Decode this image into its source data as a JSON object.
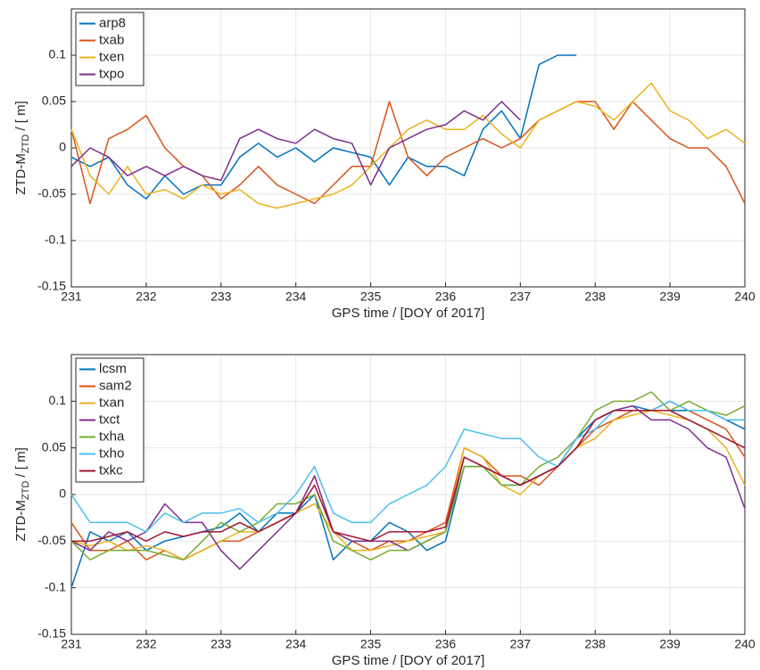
{
  "chart_data": [
    {
      "type": "line",
      "xlabel": "GPS time / [DOY of 2017]",
      "ylabel": {
        "main": "ZTD-M",
        "sub": "ZTD",
        "rest": " / [ m]"
      },
      "x": [
        231,
        231.25,
        231.5,
        231.75,
        232,
        232.25,
        232.5,
        232.75,
        233,
        233.25,
        233.5,
        233.75,
        234,
        234.25,
        234.5,
        234.75,
        235,
        235.25,
        235.5,
        235.75,
        236,
        236.25,
        236.5,
        236.75,
        237,
        237.25,
        237.5,
        237.75,
        238,
        238.25,
        238.5,
        238.75,
        239,
        239.25,
        239.5,
        239.75,
        240
      ],
      "series": [
        {
          "name": "arp8",
          "color": "#0072BD",
          "values": [
            -0.01,
            -0.02,
            -0.01,
            -0.04,
            -0.055,
            -0.03,
            -0.05,
            -0.04,
            -0.04,
            -0.01,
            0.005,
            -0.01,
            0,
            -0.015,
            0,
            -0.005,
            -0.01,
            -0.04,
            -0.01,
            -0.02,
            -0.02,
            -0.03,
            0.02,
            0.04,
            0.01,
            0.09,
            0.1,
            0.1,
            null,
            null,
            null,
            null,
            null,
            null,
            null,
            null,
            null
          ]
        },
        {
          "name": "txab",
          "color": "#D95319",
          "values": [
            0.02,
            -0.06,
            0.01,
            0.02,
            0.035,
            0,
            -0.02,
            -0.03,
            -0.055,
            -0.04,
            -0.02,
            -0.04,
            -0.05,
            -0.06,
            -0.04,
            -0.02,
            -0.02,
            0.05,
            -0.01,
            -0.03,
            -0.01,
            0,
            0.01,
            0,
            0.01,
            0.03,
            0.04,
            0.05,
            0.05,
            0.02,
            0.05,
            0.03,
            0.01,
            0,
            0,
            -0.02,
            -0.06
          ]
        },
        {
          "name": "txen",
          "color": "#EDB120",
          "values": [
            0.02,
            -0.03,
            -0.05,
            -0.02,
            -0.05,
            -0.045,
            -0.055,
            -0.04,
            -0.05,
            -0.045,
            -0.06,
            -0.065,
            -0.06,
            -0.055,
            -0.05,
            -0.04,
            -0.02,
            0,
            0.02,
            0.03,
            0.02,
            0.02,
            0.035,
            0.015,
            0,
            0.03,
            0.04,
            0.05,
            0.045,
            0.03,
            0.05,
            0.07,
            0.04,
            0.03,
            0.01,
            0.02,
            0.005
          ]
        },
        {
          "name": "txpo",
          "color": "#7E2F8E",
          "values": [
            -0.02,
            0,
            -0.01,
            -0.03,
            -0.02,
            -0.03,
            -0.02,
            -0.03,
            -0.035,
            0.01,
            0.02,
            0.01,
            0.005,
            0.02,
            0.01,
            0.005,
            -0.04,
            0,
            0.01,
            0.02,
            0.025,
            0.04,
            0.03,
            0.05,
            0.03,
            null,
            null,
            null,
            null,
            null,
            null,
            null,
            null,
            null,
            null,
            null,
            null
          ]
        }
      ],
      "xlim": [
        231,
        240
      ],
      "xticks": [
        231,
        232,
        233,
        234,
        235,
        236,
        237,
        238,
        239,
        240
      ],
      "ylim": [
        -0.15,
        0.15
      ],
      "yticks": [
        -0.15,
        -0.1,
        -0.05,
        0,
        0.05,
        0.1
      ],
      "grid": true,
      "legend": "northwest"
    },
    {
      "type": "line",
      "xlabel": "GPS time / [DOY of 2017]",
      "ylabel": {
        "main": "ZTD-M",
        "sub": "ZTD",
        "rest": " / [ m]"
      },
      "x": [
        231,
        231.25,
        231.5,
        231.75,
        232,
        232.25,
        232.5,
        232.75,
        233,
        233.25,
        233.5,
        233.75,
        234,
        234.25,
        234.5,
        234.75,
        235,
        235.25,
        235.5,
        235.75,
        236,
        236.25,
        236.5,
        236.75,
        237,
        237.25,
        237.5,
        237.75,
        238,
        238.25,
        238.5,
        238.75,
        239,
        239.25,
        239.5,
        239.75,
        240
      ],
      "series": [
        {
          "name": "lcsm",
          "color": "#0072BD",
          "values": [
            -0.1,
            -0.04,
            -0.05,
            -0.04,
            -0.06,
            -0.05,
            -0.045,
            -0.04,
            -0.035,
            -0.02,
            -0.04,
            -0.02,
            -0.02,
            0,
            -0.07,
            -0.05,
            -0.05,
            -0.03,
            -0.04,
            -0.06,
            -0.05,
            0.03,
            0.03,
            0.01,
            0.01,
            0.02,
            0.03,
            0.06,
            0.08,
            0.09,
            0.095,
            0.09,
            0.09,
            0.09,
            0.09,
            0.08,
            0.07
          ]
        },
        {
          "name": "sam2",
          "color": "#D95319",
          "values": [
            -0.03,
            -0.06,
            -0.06,
            -0.05,
            -0.07,
            -0.06,
            -0.07,
            -0.06,
            -0.05,
            -0.05,
            -0.04,
            -0.03,
            -0.02,
            0.02,
            -0.04,
            -0.05,
            -0.06,
            -0.05,
            -0.05,
            -0.04,
            -0.03,
            0.05,
            0.04,
            0.02,
            0.02,
            0.01,
            0.03,
            0.05,
            0.07,
            0.08,
            0.09,
            0.09,
            0.1,
            0.09,
            0.08,
            0.07,
            0.04
          ]
        },
        {
          "name": "txan",
          "color": "#EDB120",
          "values": [
            -0.05,
            -0.055,
            -0.05,
            -0.06,
            -0.055,
            -0.06,
            -0.07,
            -0.06,
            -0.05,
            -0.04,
            -0.04,
            -0.03,
            -0.02,
            -0.01,
            -0.04,
            -0.06,
            -0.06,
            -0.055,
            -0.05,
            -0.045,
            -0.04,
            0.05,
            0.04,
            0.01,
            0,
            0.02,
            0.03,
            0.05,
            0.06,
            0.08,
            0.085,
            0.09,
            0.085,
            0.08,
            0.07,
            0.05,
            0.01
          ]
        },
        {
          "name": "txct",
          "color": "#7E2F8E",
          "values": [
            -0.05,
            -0.06,
            -0.04,
            -0.05,
            -0.04,
            -0.01,
            -0.03,
            -0.03,
            -0.06,
            -0.08,
            -0.06,
            -0.04,
            -0.02,
            0.02,
            -0.04,
            -0.05,
            -0.05,
            -0.05,
            -0.06,
            -0.05,
            -0.04,
            0.04,
            0.03,
            0.02,
            0.01,
            0.02,
            0.03,
            0.05,
            0.08,
            0.09,
            0.095,
            0.08,
            0.08,
            0.07,
            0.05,
            0.04,
            -0.015
          ]
        },
        {
          "name": "txha",
          "color": "#77AC30",
          "values": [
            -0.05,
            -0.07,
            -0.06,
            -0.06,
            -0.06,
            -0.065,
            -0.07,
            -0.05,
            -0.03,
            -0.04,
            -0.03,
            -0.01,
            -0.01,
            0,
            -0.05,
            -0.06,
            -0.07,
            -0.06,
            -0.06,
            -0.05,
            -0.04,
            0.03,
            0.03,
            0.01,
            0.01,
            0.03,
            0.04,
            0.06,
            0.09,
            0.1,
            0.1,
            0.11,
            0.09,
            0.1,
            0.09,
            0.085,
            0.095
          ]
        },
        {
          "name": "txho",
          "color": "#4DBEEE",
          "values": [
            0,
            -0.03,
            -0.03,
            -0.03,
            -0.04,
            -0.02,
            -0.03,
            -0.02,
            -0.02,
            -0.015,
            -0.03,
            -0.02,
            0,
            0.03,
            -0.02,
            -0.03,
            -0.03,
            -0.01,
            0,
            0.01,
            0.03,
            0.07,
            0.065,
            0.06,
            0.06,
            0.04,
            0.03,
            0.06,
            0.07,
            0.09,
            0.09,
            0.09,
            0.1,
            0.09,
            0.09,
            0.08,
            0.08
          ]
        },
        {
          "name": "txkc",
          "color": "#A2142F",
          "values": [
            -0.05,
            -0.05,
            -0.045,
            -0.04,
            -0.05,
            -0.04,
            -0.045,
            -0.04,
            -0.04,
            -0.03,
            -0.04,
            -0.03,
            -0.02,
            0.01,
            -0.04,
            -0.045,
            -0.05,
            -0.04,
            -0.04,
            -0.04,
            -0.035,
            0.04,
            0.03,
            0.02,
            0.01,
            0.02,
            0.03,
            0.05,
            0.08,
            0.09,
            0.09,
            0.09,
            0.09,
            0.08,
            0.07,
            0.06,
            0.05
          ]
        }
      ],
      "xlim": [
        231,
        240
      ],
      "xticks": [
        231,
        232,
        233,
        234,
        235,
        236,
        237,
        238,
        239,
        240
      ],
      "ylim": [
        -0.15,
        0.15
      ],
      "yticks": [
        -0.15,
        -0.1,
        -0.05,
        0,
        0.05,
        0.1
      ],
      "grid": true,
      "legend": "northwest"
    }
  ]
}
